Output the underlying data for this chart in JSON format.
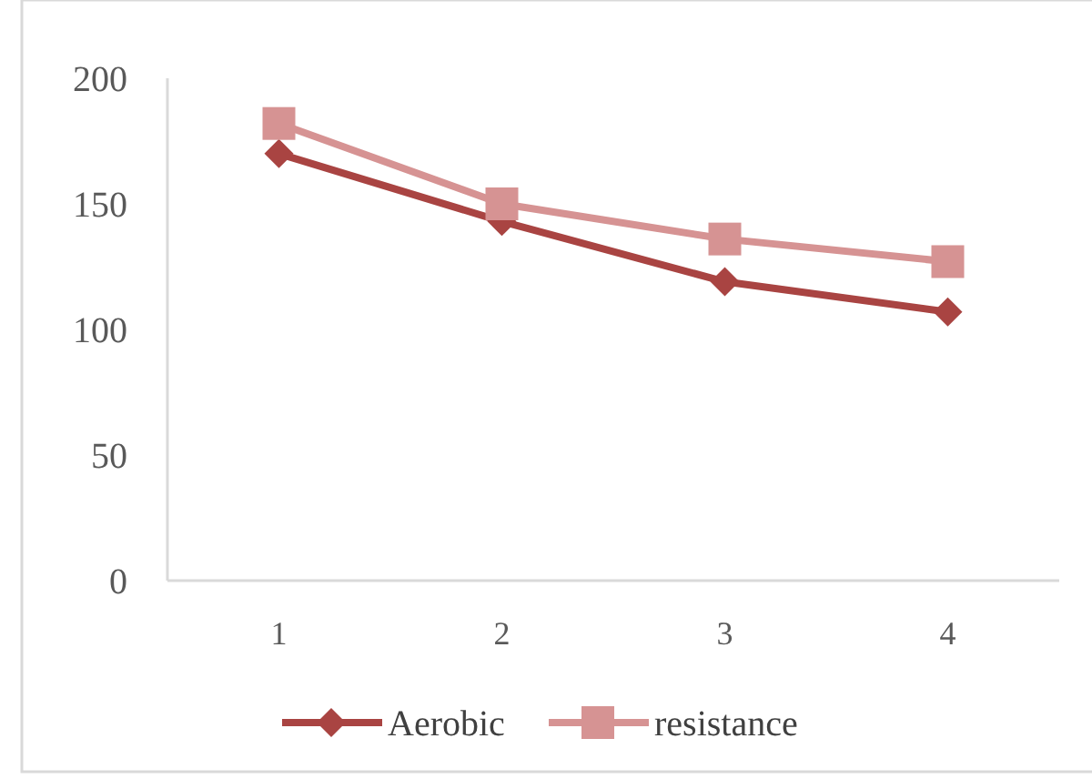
{
  "chart_data": {
    "type": "line",
    "categories": [
      "1",
      "2",
      "3",
      "4"
    ],
    "series": [
      {
        "name": "Aerobic",
        "color": "#a94442",
        "marker": "diamond",
        "values": [
          170,
          143,
          119,
          107
        ]
      },
      {
        "name": "resistance",
        "color": "#d69393",
        "marker": "square",
        "values": [
          182,
          150,
          136,
          127
        ]
      }
    ],
    "ylim": [
      0,
      200
    ],
    "yticks": [
      0,
      50,
      100,
      150,
      200
    ],
    "grid": false,
    "legend": "bottom"
  }
}
